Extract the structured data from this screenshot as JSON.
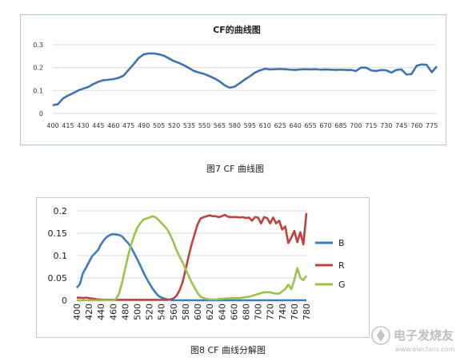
{
  "captions": {
    "fig1": "图7 CF 曲线图",
    "fig2": "图8 CF 曲线分解图"
  },
  "watermark": {
    "brand": "电子发烧友",
    "site": "www.elecfans.com"
  },
  "colors": {
    "cf_line": "#3f73b0",
    "B": "#3f7cbf",
    "R": "#c0403e",
    "G": "#9bc24a",
    "grid": "#d9d9d9"
  },
  "chart_data": [
    {
      "type": "line",
      "title": "CF的曲线图",
      "xlabel": "",
      "ylabel": "",
      "x": [
        400,
        405,
        410,
        415,
        420,
        425,
        430,
        435,
        440,
        445,
        450,
        455,
        460,
        465,
        470,
        475,
        480,
        485,
        490,
        495,
        500,
        505,
        510,
        515,
        520,
        525,
        530,
        535,
        540,
        545,
        550,
        555,
        560,
        565,
        570,
        575,
        580,
        585,
        590,
        595,
        600,
        605,
        610,
        615,
        620,
        625,
        630,
        635,
        640,
        645,
        650,
        655,
        660,
        665,
        670,
        675,
        680,
        685,
        690,
        695,
        700,
        705,
        710,
        715,
        720,
        725,
        730,
        735,
        740,
        745,
        750,
        755,
        760,
        765,
        770,
        775,
        780
      ],
      "series": [
        {
          "name": "",
          "values": [
            0.036,
            0.04,
            0.065,
            0.078,
            0.088,
            0.1,
            0.108,
            0.115,
            0.128,
            0.138,
            0.145,
            0.147,
            0.15,
            0.155,
            0.165,
            0.19,
            0.215,
            0.242,
            0.258,
            0.262,
            0.262,
            0.258,
            0.252,
            0.24,
            0.228,
            0.22,
            0.21,
            0.197,
            0.185,
            0.178,
            0.172,
            0.163,
            0.153,
            0.14,
            0.123,
            0.112,
            0.117,
            0.132,
            0.148,
            0.162,
            0.178,
            0.188,
            0.195,
            0.192,
            0.193,
            0.194,
            0.193,
            0.191,
            0.19,
            0.192,
            0.193,
            0.192,
            0.193,
            0.191,
            0.192,
            0.191,
            0.19,
            0.191,
            0.19,
            0.19,
            0.185,
            0.2,
            0.2,
            0.188,
            0.185,
            0.19,
            0.188,
            0.178,
            0.19,
            0.192,
            0.17,
            0.172,
            0.208,
            0.214,
            0.212,
            0.18,
            0.205
          ]
        }
      ],
      "ylim": [
        0,
        0.3
      ],
      "yticks": [
        "0",
        "0.1",
        "0.2",
        "0.3"
      ],
      "xtick_labels": [
        "400",
        "415",
        "430",
        "445",
        "460",
        "475",
        "490",
        "505",
        "520",
        "535",
        "550",
        "565",
        "580",
        "595",
        "610",
        "625",
        "640",
        "655",
        "670",
        "685",
        "700",
        "715",
        "730",
        "745",
        "760",
        "775"
      ],
      "grid": "horizontal",
      "legend": "none"
    },
    {
      "type": "line",
      "title": "",
      "xlabel": "",
      "ylabel": "",
      "x": [
        400,
        405,
        410,
        415,
        420,
        425,
        430,
        435,
        440,
        445,
        450,
        455,
        460,
        465,
        470,
        475,
        480,
        485,
        490,
        495,
        500,
        505,
        510,
        515,
        520,
        525,
        530,
        535,
        540,
        545,
        550,
        555,
        560,
        565,
        570,
        575,
        580,
        585,
        590,
        595,
        600,
        605,
        610,
        615,
        620,
        625,
        630,
        635,
        640,
        645,
        650,
        655,
        660,
        665,
        670,
        675,
        680,
        685,
        690,
        695,
        700,
        705,
        710,
        715,
        720,
        725,
        730,
        735,
        740,
        745,
        750,
        755,
        760,
        765,
        770,
        775,
        780
      ],
      "series": [
        {
          "name": "B",
          "values": [
            0.028,
            0.036,
            0.06,
            0.072,
            0.085,
            0.098,
            0.105,
            0.112,
            0.125,
            0.135,
            0.142,
            0.146,
            0.148,
            0.147,
            0.146,
            0.143,
            0.135,
            0.128,
            0.118,
            0.105,
            0.092,
            0.078,
            0.063,
            0.05,
            0.038,
            0.027,
            0.018,
            0.01,
            0.006,
            0.004,
            0.002,
            0.001,
            0,
            0,
            0,
            0,
            0,
            0,
            0,
            0,
            0,
            0,
            0,
            0,
            0,
            0,
            0,
            0,
            0,
            0,
            0,
            0,
            0,
            0,
            0,
            0,
            0,
            0,
            0,
            0,
            0,
            0,
            0,
            0,
            0,
            0,
            0,
            0,
            0,
            0,
            0,
            0,
            0,
            0,
            0,
            0,
            0
          ]
        },
        {
          "name": "R",
          "values": [
            0.006,
            0.006,
            0.005,
            0.006,
            0.005,
            0.004,
            0.003,
            0.002,
            0.001,
            0.001,
            0.001,
            0.001,
            0.001,
            0.001,
            0.001,
            0.001,
            0.001,
            0.001,
            0.001,
            0.001,
            0.001,
            0.001,
            0.001,
            0.001,
            0.001,
            0.001,
            0.001,
            0.001,
            0.001,
            0.001,
            0.001,
            0.002,
            0.004,
            0.01,
            0.022,
            0.04,
            0.068,
            0.098,
            0.125,
            0.148,
            0.17,
            0.183,
            0.186,
            0.188,
            0.19,
            0.188,
            0.188,
            0.186,
            0.188,
            0.191,
            0.187,
            0.186,
            0.186,
            0.186,
            0.185,
            0.186,
            0.184,
            0.185,
            0.178,
            0.186,
            0.185,
            0.172,
            0.186,
            0.184,
            0.172,
            0.185,
            0.172,
            0.178,
            0.158,
            0.165,
            0.128,
            0.14,
            0.155,
            0.13,
            0.152,
            0.125,
            0.195
          ]
        },
        {
          "name": "G",
          "values": [
            0,
            0,
            0,
            0,
            0,
            0,
            0,
            0,
            0,
            0,
            0,
            0,
            0,
            0.003,
            0.015,
            0.04,
            0.07,
            0.1,
            0.125,
            0.145,
            0.162,
            0.172,
            0.18,
            0.183,
            0.185,
            0.188,
            0.186,
            0.18,
            0.173,
            0.166,
            0.158,
            0.145,
            0.13,
            0.112,
            0.098,
            0.085,
            0.07,
            0.055,
            0.04,
            0.028,
            0.016,
            0.008,
            0.005,
            0.003,
            0.002,
            0.002,
            0.002,
            0.003,
            0.003,
            0.004,
            0.004,
            0.005,
            0.005,
            0.005,
            0.005,
            0.006,
            0.007,
            0.008,
            0.01,
            0.012,
            0.014,
            0.016,
            0.018,
            0.018,
            0.018,
            0.016,
            0.015,
            0.015,
            0.02,
            0.025,
            0.035,
            0.025,
            0.045,
            0.072,
            0.05,
            0.045,
            0.055
          ]
        }
      ],
      "ylim": [
        0,
        0.2
      ],
      "yticks": [
        "0",
        "0.05",
        "0.1",
        "0.15",
        "0.2"
      ],
      "xtick_labels": [
        "400",
        "420",
        "440",
        "460",
        "480",
        "500",
        "520",
        "540",
        "560",
        "580",
        "600",
        "620",
        "640",
        "660",
        "680",
        "700",
        "720",
        "740",
        "760",
        "780"
      ],
      "grid": "horizontal",
      "legend": "right"
    }
  ]
}
